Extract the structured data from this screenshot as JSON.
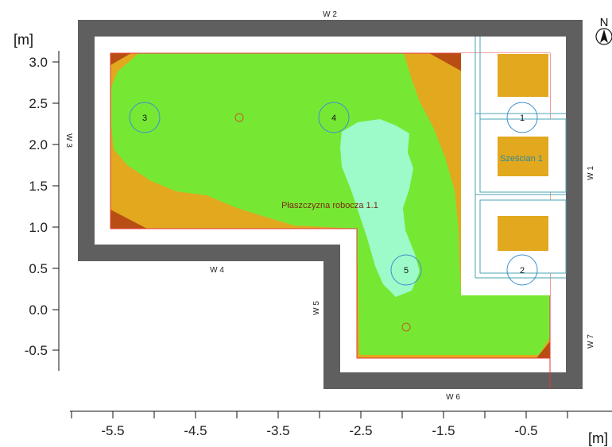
{
  "axes": {
    "x_unit": "[m]",
    "y_unit": "[m]",
    "x_ticks": [
      "-5.5",
      "-4.5",
      "-3.5",
      "-2.5",
      "-1.5",
      "-0.5"
    ],
    "y_ticks": [
      "3.0",
      "2.5",
      "2.0",
      "1.5",
      "1.0",
      "0.5",
      "0.0",
      "-0.5"
    ]
  },
  "walls": {
    "w1": "W 1",
    "w2": "W 2",
    "w3": "W 3",
    "w4": "W 4",
    "w5": "W 5",
    "w6": "W 6",
    "w7": "W 7"
  },
  "sensors": [
    "1",
    "2",
    "3",
    "4",
    "5"
  ],
  "work_plane_label": "Płaszczyzna robocza 1.1",
  "cube_label": "Sześcian 1",
  "north_label": "N",
  "colors": {
    "wall": "#5f5f5f",
    "floor": "#ffffff",
    "level_high": "#9dfac9",
    "level_mid": "#76e834",
    "level_low": "#e2a81e",
    "level_lowest": "#b84e14",
    "sensor_ring": "#3a8fd0",
    "cube_lines": "#4aa5b0"
  }
}
